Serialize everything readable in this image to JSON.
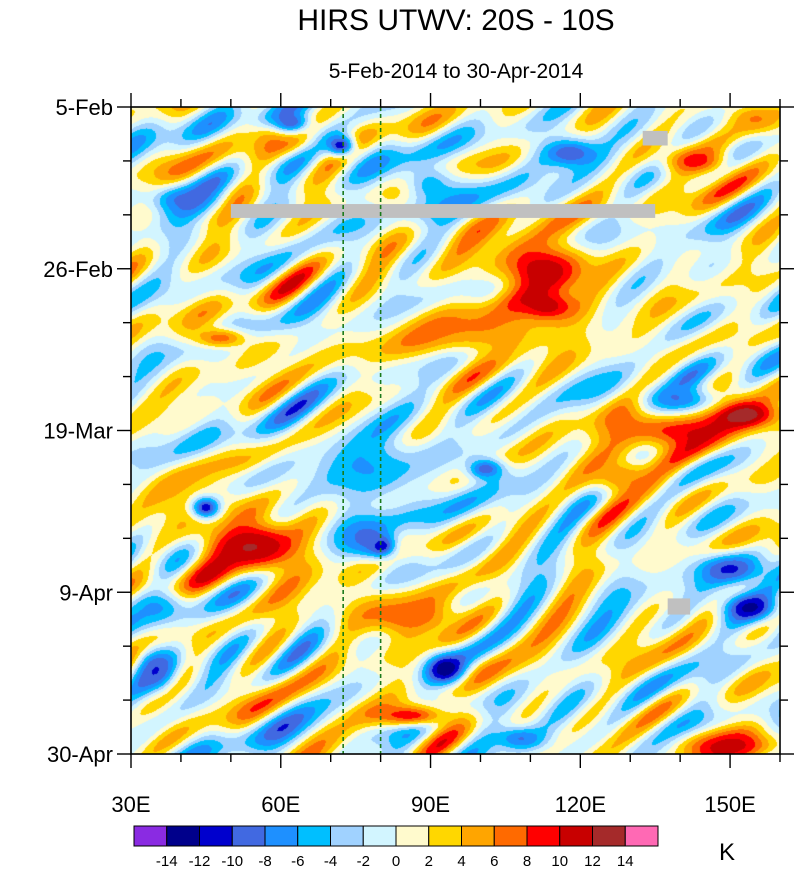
{
  "chart_data": {
    "type": "heatmap",
    "title": "HIRS UTWV: 20S - 10S",
    "subtitle": "5-Feb-2014 to 30-Apr-2014",
    "x_axis": {
      "range": [
        30,
        160
      ],
      "ticks": [
        30,
        60,
        90,
        120,
        150
      ],
      "tick_labels": [
        "30E",
        "60E",
        "90E",
        "120E",
        "150E"
      ]
    },
    "y_axis": {
      "range_days": [
        0,
        84
      ],
      "ticks": [
        0,
        21,
        42,
        63,
        84
      ],
      "tick_labels": [
        "5-Feb",
        "26-Feb",
        "19-Mar",
        "9-Apr",
        "30-Apr"
      ]
    },
    "reference_lines_lon": [
      72.5,
      80
    ],
    "colorbar": {
      "units": "K",
      "labels": [
        "-14",
        "-12",
        "-10",
        "-8",
        "-6",
        "-4",
        "-2",
        "0",
        "2",
        "4",
        "6",
        "8",
        "10",
        "12",
        "14"
      ],
      "levels": [
        -14,
        -12,
        -10,
        -8,
        -6,
        -4,
        -2,
        0,
        2,
        4,
        6,
        8,
        10,
        12,
        14
      ],
      "colors": [
        "#8a2be2",
        "#00008b",
        "#0000cd",
        "#4169e1",
        "#1e90ff",
        "#00bfff",
        "#a0d2ff",
        "#d2f5ff",
        "#fffacd",
        "#ffd700",
        "#ffa500",
        "#ff6a00",
        "#ff0000",
        "#c80000",
        "#a52a2a",
        "#ff69b4"
      ]
    },
    "missing_color": "#c0c0c0",
    "missing_regions": [
      {
        "lon": [
          50,
          135
        ],
        "day": [
          12.6,
          14.4
        ]
      },
      {
        "lon": [
          132.5,
          137.5
        ],
        "day": [
          3.1,
          5.0
        ]
      },
      {
        "lon": [
          137.5,
          142
        ],
        "day": [
          63.8,
          65.9
        ]
      }
    ],
    "features": [
      {
        "lon": 112,
        "day": 21,
        "value": 12,
        "lon_r": 10,
        "day_r": 4
      },
      {
        "lon": 113,
        "day": 26,
        "value": 13,
        "lon_r": 6,
        "day_r": 2
      },
      {
        "lon": 100,
        "day": 29,
        "value": 6,
        "lon_r": 18,
        "day_r": 4
      },
      {
        "lon": 152,
        "day": 40,
        "value": 15,
        "lon_r": 8,
        "day_r": 2
      },
      {
        "lon": 140,
        "day": 42,
        "value": 10,
        "lon_r": 14,
        "day_r": 3
      },
      {
        "lon": 54,
        "day": 57,
        "value": 15,
        "lon_r": 6,
        "day_r": 2
      },
      {
        "lon": 55,
        "day": 57,
        "value": 10,
        "lon_r": 11,
        "day_r": 4
      },
      {
        "lon": 43,
        "day": 52,
        "value": 5,
        "lon_r": 8,
        "day_r": 4
      },
      {
        "lon": 86,
        "day": 79,
        "value": 10,
        "lon_r": 8,
        "day_r": 1.5
      },
      {
        "lon": 85,
        "day": 66,
        "value": 8,
        "lon_r": 13,
        "day_r": 3
      },
      {
        "lon": 150,
        "day": 83,
        "value": 10,
        "lon_r": 10,
        "day_r": 2
      },
      {
        "lon": 143,
        "day": 7,
        "value": 9,
        "lon_r": 7,
        "day_r": 2
      },
      {
        "lon": 155,
        "day": 1.5,
        "value": 6,
        "lon_r": 6,
        "day_r": 2
      },
      {
        "lon": 48,
        "day": 30,
        "value": 8,
        "lon_r": 6,
        "day_r": 1.5
      },
      {
        "lon": 60,
        "day": 4,
        "value": 6,
        "lon_r": 6,
        "day_r": 2
      },
      {
        "lon": 128,
        "day": 48,
        "value": 7,
        "lon_r": 8,
        "day_r": 3
      },
      {
        "lon": 72,
        "day": 5,
        "value": -12,
        "lon_r": 3,
        "day_r": 1.5
      },
      {
        "lon": 62,
        "day": 2,
        "value": -10,
        "lon_r": 4,
        "day_r": 1.5
      },
      {
        "lon": 40,
        "day": 12,
        "value": -8,
        "lon_r": 7,
        "day_r": 2
      },
      {
        "lon": 45,
        "day": 52,
        "value": -12,
        "lon_r": 3,
        "day_r": 1.5
      },
      {
        "lon": 80,
        "day": 57,
        "value": -14,
        "lon_r": 3,
        "day_r": 1.5
      },
      {
        "lon": 77,
        "day": 56,
        "value": -8,
        "lon_r": 5,
        "day_r": 3
      },
      {
        "lon": 93,
        "day": 73,
        "value": -13,
        "lon_r": 4,
        "day_r": 2
      },
      {
        "lon": 118,
        "day": 6,
        "value": -10,
        "lon_r": 6,
        "day_r": 2
      },
      {
        "lon": 101,
        "day": 47,
        "value": -10,
        "lon_r": 4,
        "day_r": 1.5
      },
      {
        "lon": 150,
        "day": 60,
        "value": -10,
        "lon_r": 7,
        "day_r": 2
      },
      {
        "lon": 154,
        "day": 65,
        "value": -12,
        "lon_r": 6,
        "day_r": 2
      },
      {
        "lon": 140,
        "day": 38,
        "value": -8,
        "lon_r": 8,
        "day_r": 2
      },
      {
        "lon": 35,
        "day": 73,
        "value": -9,
        "lon_r": 4,
        "day_r": 3
      },
      {
        "lon": 108,
        "day": 82,
        "value": -8,
        "lon_r": 5,
        "day_r": 1.5
      },
      {
        "lon": 78,
        "day": 47,
        "value": -6,
        "lon_r": 12,
        "day_r": 5
      },
      {
        "lon": 35,
        "day": 65,
        "value": -6,
        "lon_r": 5,
        "day_r": 2
      },
      {
        "lon": 90,
        "day": 10,
        "value": -6,
        "lon_r": 6,
        "day_r": 3
      }
    ]
  }
}
